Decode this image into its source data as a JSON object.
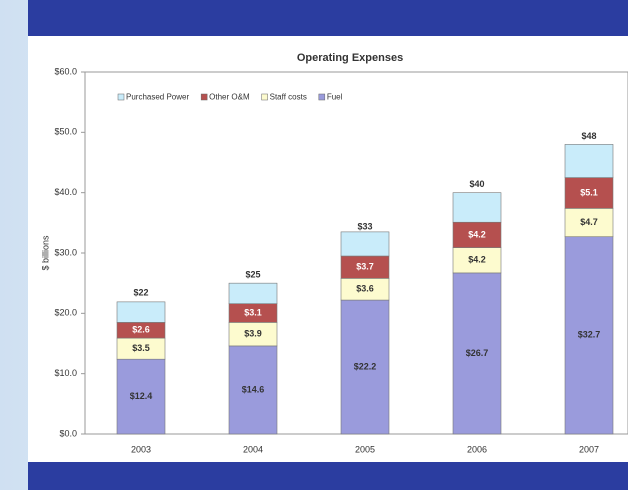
{
  "chart_data": {
    "type": "stacked_bar",
    "title": "Operating Expenses",
    "y_label": "$ billions",
    "categories": [
      "2003",
      "2004",
      "2005",
      "2006",
      "2007"
    ],
    "series": [
      {
        "name": "Purchased Power",
        "color": "#c9ecfa",
        "values": [
          3.4,
          3.4,
          4.0,
          4.9,
          5.5
        ]
      },
      {
        "name": "Other O&M",
        "color": "#b5504f",
        "values": [
          2.6,
          3.1,
          3.7,
          4.2,
          5.1
        ],
        "value_labels": [
          "$2.6",
          "$3.1",
          "$3.7",
          "$4.2",
          "$5.1"
        ]
      },
      {
        "name": "Staff costs",
        "color": "#fdfbcf",
        "values": [
          3.5,
          3.9,
          3.6,
          4.2,
          4.7
        ],
        "value_labels": [
          "$3.5",
          "$3.9",
          "$3.6",
          "$4.2",
          "$4.7"
        ]
      },
      {
        "name": "Fuel",
        "color": "#9a9bdc",
        "values": [
          12.4,
          14.6,
          22.2,
          26.7,
          32.7
        ],
        "value_labels": [
          "$12.4",
          "$14.6",
          "$22.2",
          "$26.7",
          "$32.7"
        ]
      }
    ],
    "totals": [
      22,
      25,
      33,
      40,
      48
    ],
    "total_labels": [
      "$22",
      "$25",
      "$33",
      "$40",
      "$48"
    ],
    "ylim": [
      0,
      60
    ],
    "yticks": [
      {
        "value": 0,
        "label": "$0.0"
      },
      {
        "value": 10,
        "label": "$10.0"
      },
      {
        "value": 20,
        "label": "$20.0"
      },
      {
        "value": 30,
        "label": "$30.0"
      },
      {
        "value": 40,
        "label": "$40.0"
      },
      {
        "value": 50,
        "label": "$50.0"
      },
      {
        "value": 60,
        "label": "$60.0"
      }
    ],
    "grid": false,
    "legend": "top-left"
  }
}
